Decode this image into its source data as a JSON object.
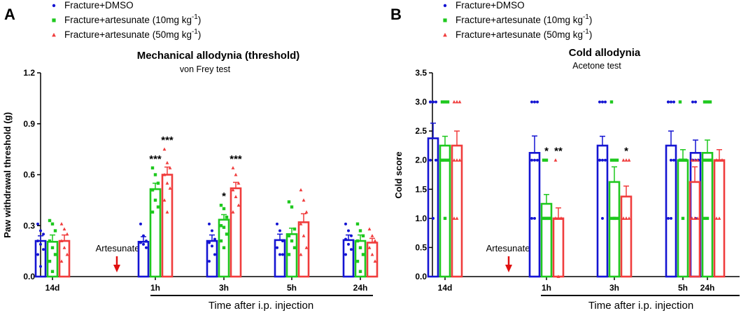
{
  "legend": [
    {
      "name": "Fracture+DMSO",
      "color": "#1414d2",
      "marker": "circle"
    },
    {
      "name": "Fracture+artesunate (10mg kg",
      "sup": "-1",
      "tail": ")",
      "color": "#1ec81e",
      "marker": "square"
    },
    {
      "name": "Fracture+artesunate (50mg kg",
      "sup": "-1",
      "tail": ")",
      "color": "#f03c3c",
      "marker": "triangle"
    }
  ],
  "x_axis_title": "Time after i.p. injection",
  "annotation": "Artesunate",
  "chart_data": [
    {
      "panel": "A",
      "type": "bar",
      "title": "Mechanical allodynia (threshold)",
      "subtitle": "von Frey test",
      "xlabel": "Time after i.p. injection",
      "ylabel": "Paw withdrawal threshold (g)",
      "ylim": [
        0,
        1.2
      ],
      "yticks": [
        0.0,
        0.3,
        0.6,
        0.9,
        1.2
      ],
      "ytick_labels": [
        "0.0",
        "0.3",
        "0.6",
        "0.9",
        "1.2"
      ],
      "categories": [
        "14d",
        "1h",
        "3h",
        "5h",
        "24h"
      ],
      "series": [
        {
          "name": "Fracture+DMSO",
          "values": [
            0.21,
            0.205,
            0.21,
            0.215,
            0.215
          ],
          "errors": [
            0.03,
            0.03,
            0.035,
            0.035,
            0.03
          ],
          "points": [
            [
              0.31,
              0.27,
              0.25,
              0.21,
              0.19,
              0.16,
              0.13,
              0.06
            ],
            [
              0.31,
              0.24,
              0.21,
              0.2,
              0.19,
              0.17
            ],
            [
              0.31,
              0.27,
              0.22,
              0.2,
              0.18,
              0.13,
              0.09
            ],
            [
              0.31,
              0.27,
              0.21,
              0.17,
              0.13,
              0.13
            ],
            [
              0.31,
              0.27,
              0.24,
              0.22,
              0.19,
              0.16,
              0.13
            ]
          ]
        },
        {
          "name": "Fracture+artesunate (10mg kg-1)",
          "values": [
            0.205,
            0.515,
            0.335,
            0.25,
            0.21
          ],
          "errors": [
            0.04,
            0.035,
            0.03,
            0.035,
            0.035
          ],
          "points": [
            [
              0.33,
              0.31,
              0.27,
              0.21,
              0.17,
              0.13,
              0.09,
              0.03
            ],
            [
              0.64,
              0.6,
              0.55,
              0.51,
              0.45,
              0.41,
              0.38
            ],
            [
              0.42,
              0.4,
              0.35,
              0.3,
              0.29,
              0.25,
              0.21,
              0.17
            ],
            [
              0.44,
              0.41,
              0.28,
              0.24,
              0.21,
              0.17,
              0.13
            ],
            [
              0.31,
              0.27,
              0.24,
              0.21,
              0.17,
              0.13,
              0.09,
              0.03
            ]
          ]
        },
        {
          "name": "Fracture+artesunate (50mg kg-1)",
          "values": [
            0.21,
            0.6,
            0.52,
            0.32,
            0.2
          ],
          "errors": [
            0.035,
            0.045,
            0.035,
            0.05,
            0.025
          ],
          "points": [
            [
              0.31,
              0.28,
              0.25,
              0.21,
              0.17,
              0.13,
              0.09
            ],
            [
              0.75,
              0.67,
              0.64,
              0.6,
              0.55,
              0.52,
              0.45,
              0.38
            ],
            [
              0.64,
              0.6,
              0.55,
              0.51,
              0.47,
              0.42,
              0.38
            ],
            [
              0.51,
              0.45,
              0.38,
              0.31,
              0.24,
              0.17,
              0.13
            ],
            [
              0.28,
              0.24,
              0.21,
              0.17,
              0.13,
              0.09
            ]
          ]
        }
      ],
      "significance": [
        {
          "category": "1h",
          "series": 1,
          "label": "***"
        },
        {
          "category": "1h",
          "series": 2,
          "label": "***"
        },
        {
          "category": "3h",
          "series": 1,
          "label": "*"
        },
        {
          "category": "3h",
          "series": 2,
          "label": "***"
        }
      ]
    },
    {
      "panel": "B",
      "type": "bar",
      "title": "Cold allodynia",
      "subtitle": "Acetone test",
      "xlabel": "Time after i.p. injection",
      "ylabel": "Cold score",
      "ylim": [
        0,
        3.5
      ],
      "yticks": [
        0.0,
        0.5,
        1.0,
        1.5,
        2.0,
        2.5,
        3.0,
        3.5
      ],
      "ytick_labels": [
        "0.0",
        "0.5",
        "1.0",
        "1.5",
        "2.0",
        "2.5",
        "3.0",
        "3.5"
      ],
      "categories": [
        "14d",
        "1h",
        "3h",
        "5h",
        "24h"
      ],
      "series": [
        {
          "name": "Fracture+DMSO",
          "values": [
            2.375,
            2.125,
            2.25,
            2.25,
            2.125
          ],
          "errors": [
            0.26,
            0.29,
            0.16,
            0.25,
            0.22
          ],
          "points": [
            [
              3,
              3,
              3,
              3,
              3,
              2,
              2,
              1
            ],
            [
              3,
              3,
              3,
              2,
              2,
              2,
              1,
              1
            ],
            [
              3,
              3,
              3,
              2,
              2,
              2,
              2,
              1
            ],
            [
              3,
              3,
              3,
              3,
              2,
              2,
              1,
              1
            ],
            [
              3,
              3,
              2,
              2,
              2,
              2,
              2,
              1
            ]
          ]
        },
        {
          "name": "Fracture+artesunate (10mg kg-1)",
          "values": [
            2.25,
            1.25,
            1.625,
            2.0,
            2.125
          ],
          "errors": [
            0.16,
            0.16,
            0.26,
            0.18,
            0.22
          ],
          "points": [
            [
              3,
              3,
              3,
              2,
              2,
              2,
              2,
              1
            ],
            [
              2,
              2,
              1,
              1,
              1,
              1,
              1,
              1
            ],
            [
              3,
              2,
              2,
              2,
              1,
              1,
              1,
              1
            ],
            [
              3,
              2,
              2,
              2,
              2,
              2,
              2,
              1
            ],
            [
              3,
              3,
              3,
              2,
              2,
              2,
              1,
              1
            ]
          ]
        },
        {
          "name": "Fracture+artesunate (50mg kg-1)",
          "values": [
            2.25,
            1.0,
            1.375,
            1.625,
            2.0
          ],
          "errors": [
            0.25,
            0.18,
            0.18,
            0.26,
            0.18
          ],
          "points": [
            [
              3,
              3,
              3,
              2,
              2,
              2,
              1,
              1
            ],
            [
              2,
              1,
              1,
              1,
              1,
              1,
              1,
              0
            ],
            [
              2,
              2,
              2,
              1,
              1,
              1,
              1,
              1
            ],
            [
              2,
              2,
              2,
              1,
              1,
              1,
              1,
              1
            ],
            [
              2,
              2,
              2,
              2,
              2,
              2,
              1,
              1
            ]
          ]
        }
      ],
      "significance": [
        {
          "category": "1h",
          "series": 1,
          "label": "*"
        },
        {
          "category": "1h",
          "series": 2,
          "label": "**"
        },
        {
          "category": "3h",
          "series": 2,
          "label": "*"
        }
      ]
    }
  ]
}
